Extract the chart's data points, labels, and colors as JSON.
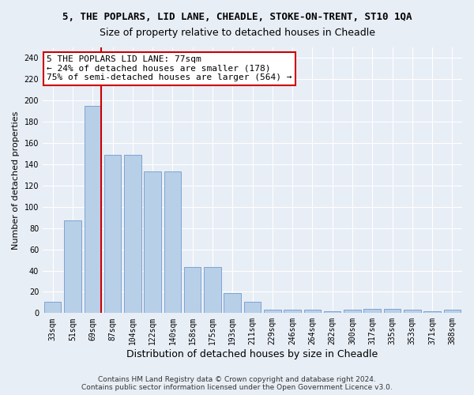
{
  "title": "5, THE POPLARS, LID LANE, CHEADLE, STOKE-ON-TRENT, ST10 1QA",
  "subtitle": "Size of property relative to detached houses in Cheadle",
  "xlabel": "Distribution of detached houses by size in Cheadle",
  "ylabel": "Number of detached properties",
  "categories": [
    "33sqm",
    "51sqm",
    "69sqm",
    "87sqm",
    "104sqm",
    "122sqm",
    "140sqm",
    "158sqm",
    "175sqm",
    "193sqm",
    "211sqm",
    "229sqm",
    "246sqm",
    "264sqm",
    "282sqm",
    "300sqm",
    "317sqm",
    "335sqm",
    "353sqm",
    "371sqm",
    "388sqm"
  ],
  "values": [
    11,
    87,
    195,
    149,
    149,
    133,
    133,
    43,
    43,
    19,
    11,
    3,
    3,
    3,
    2,
    3,
    4,
    4,
    3,
    2,
    3
  ],
  "bar_color": "#b8cfe8",
  "bar_edge_color": "#5b8dc8",
  "highlight_bar_index": 2,
  "highlight_color": "#cc0000",
  "annotation_line1": "5 THE POPLARS LID LANE: 77sqm",
  "annotation_line2": "← 24% of detached houses are smaller (178)",
  "annotation_line3": "75% of semi-detached houses are larger (564) →",
  "annotation_box_color": "#ffffff",
  "annotation_box_edge_color": "#cc0000",
  "ylim": [
    0,
    250
  ],
  "yticks": [
    0,
    20,
    40,
    60,
    80,
    100,
    120,
    140,
    160,
    180,
    200,
    220,
    240
  ],
  "footer_line1": "Contains HM Land Registry data © Crown copyright and database right 2024.",
  "footer_line2": "Contains public sector information licensed under the Open Government Licence v3.0.",
  "bg_color": "#e8eef6",
  "title_fontsize": 9,
  "subtitle_fontsize": 9,
  "xlabel_fontsize": 9,
  "ylabel_fontsize": 8,
  "tick_fontsize": 7,
  "annotation_fontsize": 8,
  "footer_fontsize": 6.5
}
